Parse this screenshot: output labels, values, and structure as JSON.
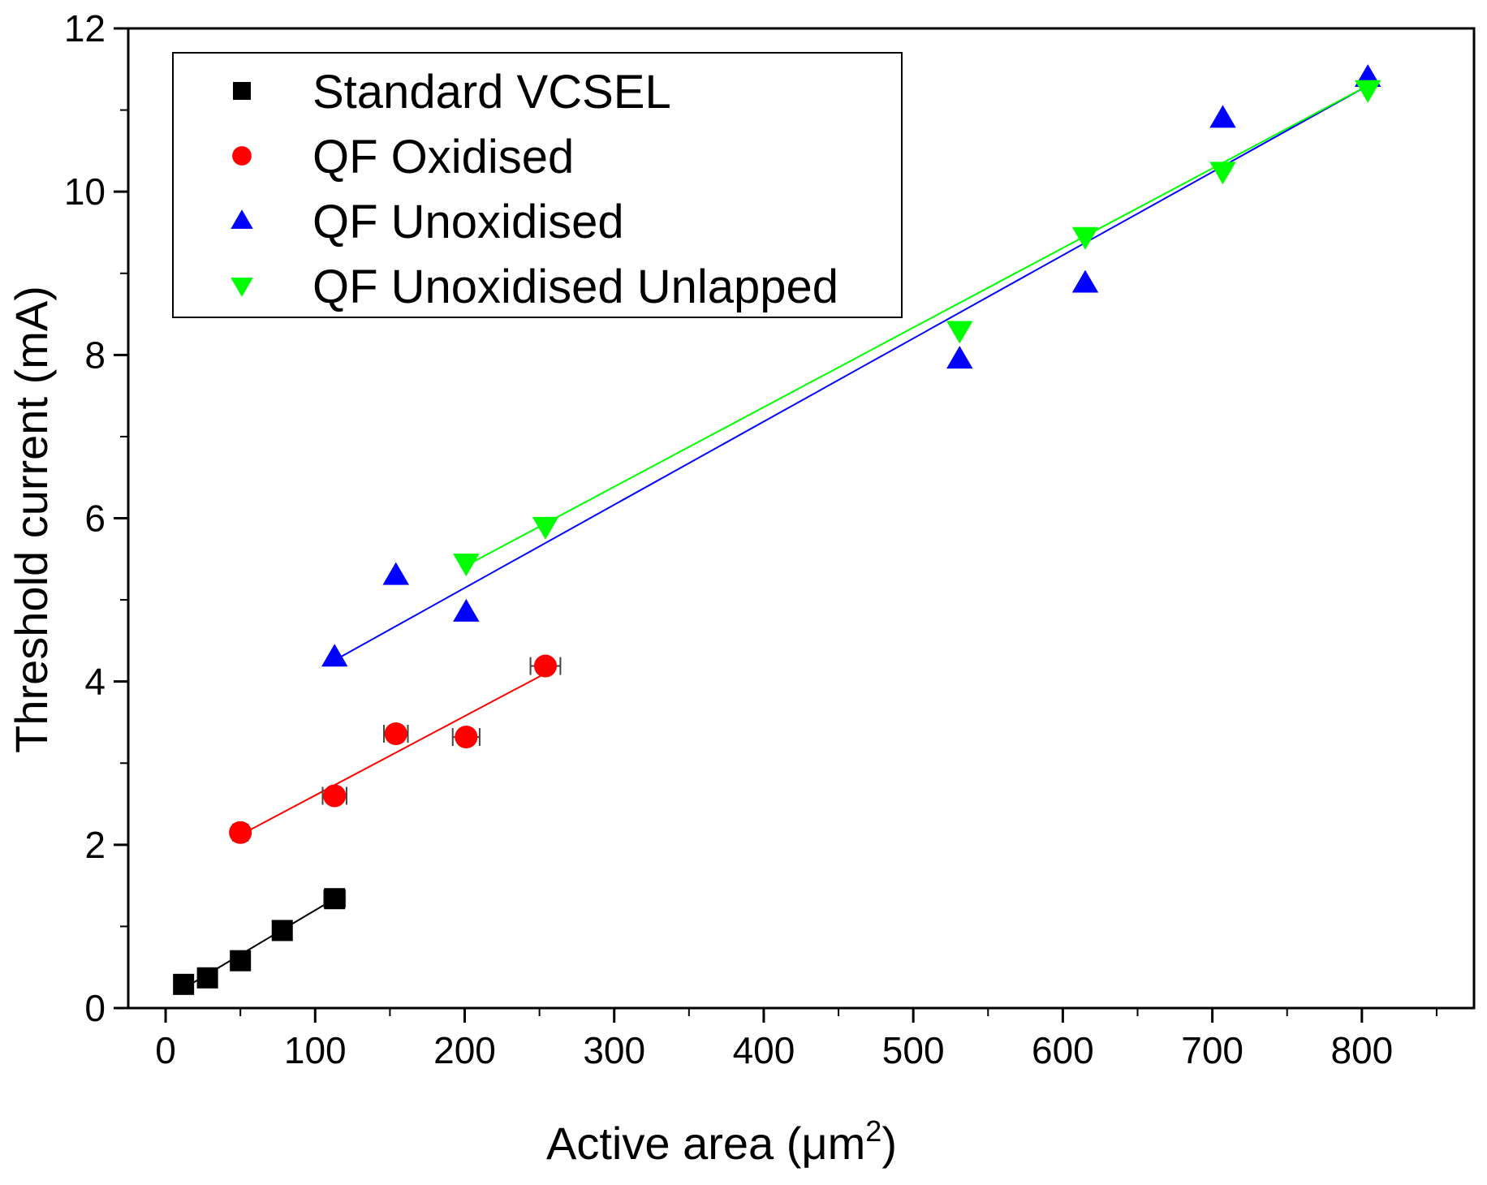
{
  "chart_data": {
    "type": "scatter",
    "xlabel": "Active area (μm²)",
    "xlabel_parts": {
      "main": "Active area (",
      "mu": "μm",
      "sup": "2",
      "close": ")"
    },
    "ylabel": "Threshold current (mA)",
    "xlim": [
      -25,
      875
    ],
    "ylim": [
      0,
      12
    ],
    "x_ticks": [
      0,
      100,
      200,
      300,
      400,
      500,
      600,
      700,
      800
    ],
    "y_ticks": [
      0,
      2,
      4,
      6,
      8,
      10,
      12
    ],
    "x_tick_labels": [
      "0",
      "100",
      "200",
      "300",
      "400",
      "500",
      "600",
      "700",
      "800"
    ],
    "y_tick_labels": [
      "0",
      "2",
      "4",
      "6",
      "8",
      "10",
      "12"
    ],
    "grid": false,
    "legend_position": "top-left",
    "series": [
      {
        "name": "Standard VCSEL",
        "marker": "square",
        "color": "#000000",
        "points": [
          [
            12,
            0.29
          ],
          [
            28,
            0.37
          ],
          [
            50,
            0.58
          ],
          [
            78,
            0.95
          ],
          [
            113,
            1.34
          ]
        ],
        "x_error": [
          0,
          0,
          0,
          0,
          7
        ],
        "fit": [
          [
            12,
            0.24
          ],
          [
            113,
            1.34
          ]
        ]
      },
      {
        "name": "QF Oxidised",
        "marker": "circle",
        "color": "#ff0000",
        "points": [
          [
            50,
            2.15
          ],
          [
            113,
            2.6
          ],
          [
            154,
            3.36
          ],
          [
            201,
            3.32
          ],
          [
            254,
            4.19
          ]
        ],
        "x_error": [
          5,
          8,
          8,
          9,
          10
        ],
        "fit": [
          [
            50,
            2.12
          ],
          [
            254,
            4.1
          ]
        ]
      },
      {
        "name": "QF Unoxidised",
        "marker": "triangle-up",
        "color": "#0000ff",
        "points": [
          [
            113,
            4.3
          ],
          [
            154,
            5.3
          ],
          [
            201,
            4.85
          ],
          [
            531,
            7.95
          ],
          [
            615,
            8.88
          ],
          [
            707,
            10.9
          ],
          [
            804,
            11.4
          ]
        ],
        "fit": [
          [
            113,
            4.26
          ],
          [
            804,
            11.3
          ]
        ]
      },
      {
        "name": "QF Unoxidised Unlapped",
        "marker": "triangle-down",
        "color": "#00ff00",
        "points": [
          [
            201,
            5.45
          ],
          [
            254,
            5.9
          ],
          [
            531,
            8.3
          ],
          [
            615,
            9.45
          ],
          [
            707,
            10.25
          ],
          [
            804,
            11.25
          ]
        ],
        "fit": [
          [
            201,
            5.42
          ],
          [
            804,
            11.3
          ]
        ]
      }
    ]
  }
}
